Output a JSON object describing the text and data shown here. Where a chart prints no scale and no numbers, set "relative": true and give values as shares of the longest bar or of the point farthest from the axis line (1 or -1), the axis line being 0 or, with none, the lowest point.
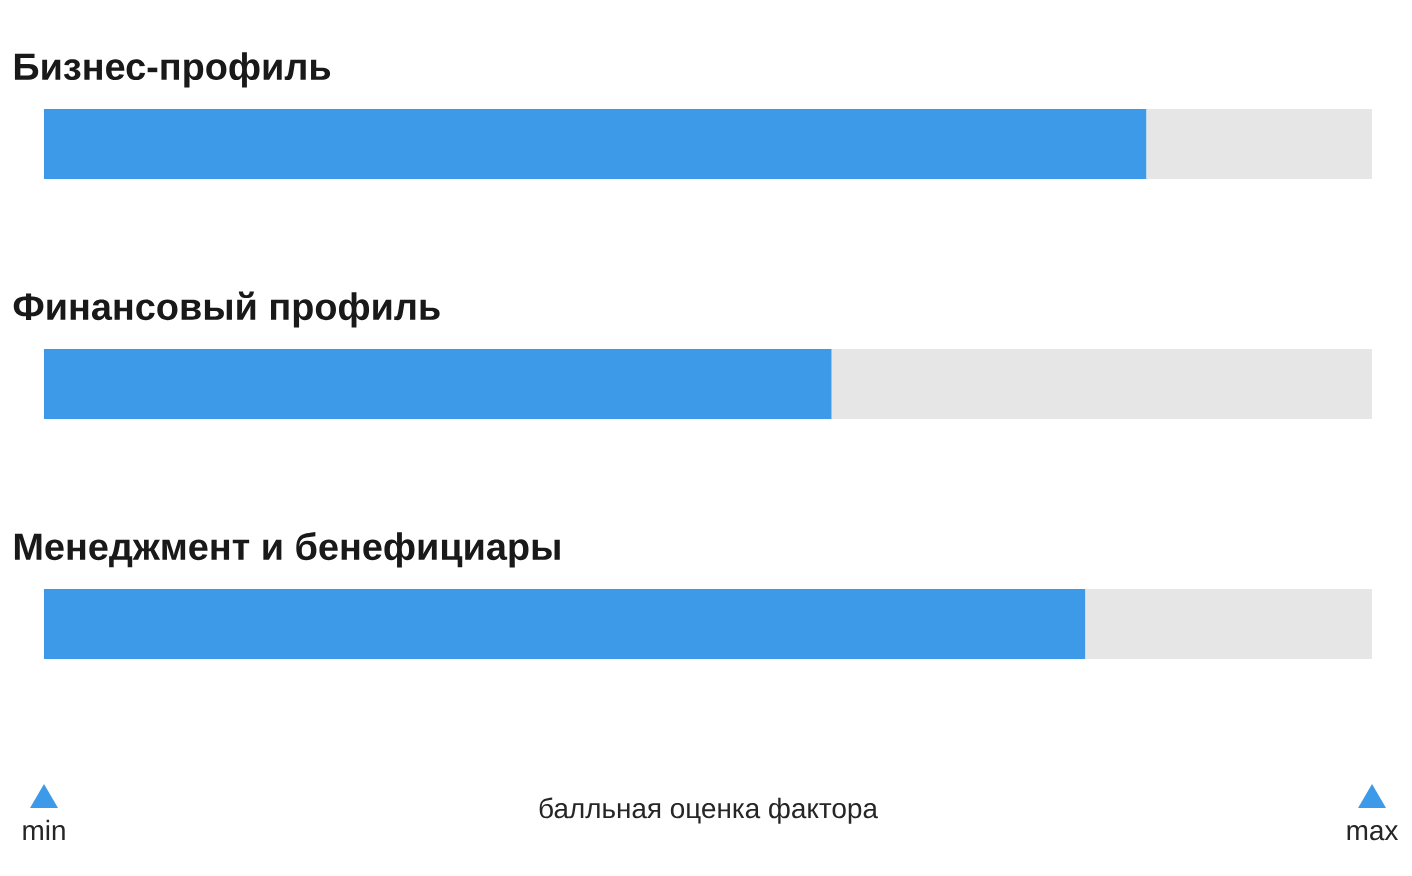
{
  "chart_data": {
    "type": "bar",
    "orientation": "horizontal",
    "relative": true,
    "stacked": true,
    "categories": [
      "Бизнес-профиль",
      "Финансовый профиль",
      "Менеджмент и бенефициары"
    ],
    "series": [
      {
        "color": "#3d9ae8",
        "values": [
          0.83,
          0.593,
          0.784
        ]
      },
      {
        "color": "#e6e6e6",
        "values": [
          0.17,
          0.407,
          0.216
        ]
      }
    ],
    "xlabel": "балльная оценка фактора",
    "annotations": [
      "min",
      "max"
    ]
  }
}
